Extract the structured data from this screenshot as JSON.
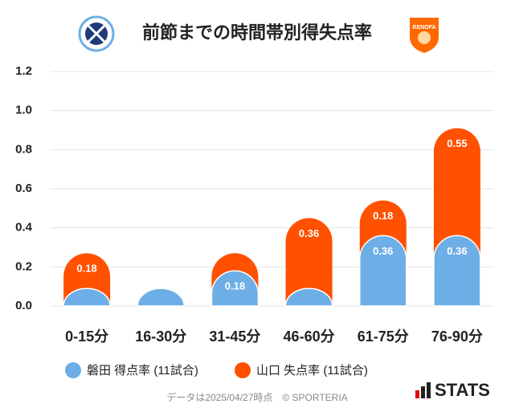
{
  "chart_data": {
    "type": "bar",
    "stacked": true,
    "title": "前節までの時間帯別得失点率",
    "categories": [
      "0-15分",
      "16-30分",
      "31-45分",
      "46-60分",
      "61-75分",
      "76-90分"
    ],
    "series": [
      {
        "name": "磐田 得点率 (11試合)",
        "color": "#6eaee6",
        "values": [
          0.09,
          0.09,
          0.18,
          0.09,
          0.36,
          0.36
        ],
        "value_labels": [
          null,
          null,
          "0.18",
          null,
          "0.36",
          "0.36"
        ]
      },
      {
        "name": "山口 失点率 (11試合)",
        "color": "#ff5100",
        "values": [
          0.18,
          0,
          0.09,
          0.36,
          0.18,
          0.55
        ],
        "value_labels": [
          "0.18",
          null,
          null,
          "0.36",
          "0.18",
          "0.55"
        ]
      }
    ],
    "ylim": [
      0,
      1.2
    ],
    "yticks": [
      {
        "value": 0,
        "label": "0.0"
      },
      0.2,
      0.4,
      0.6,
      0.8,
      {
        "value": 1,
        "label": "1.0"
      },
      1.2
    ],
    "grid": true
  },
  "source": "データは2025/04/27時点　© SPORTERIA",
  "brand": "STATS"
}
